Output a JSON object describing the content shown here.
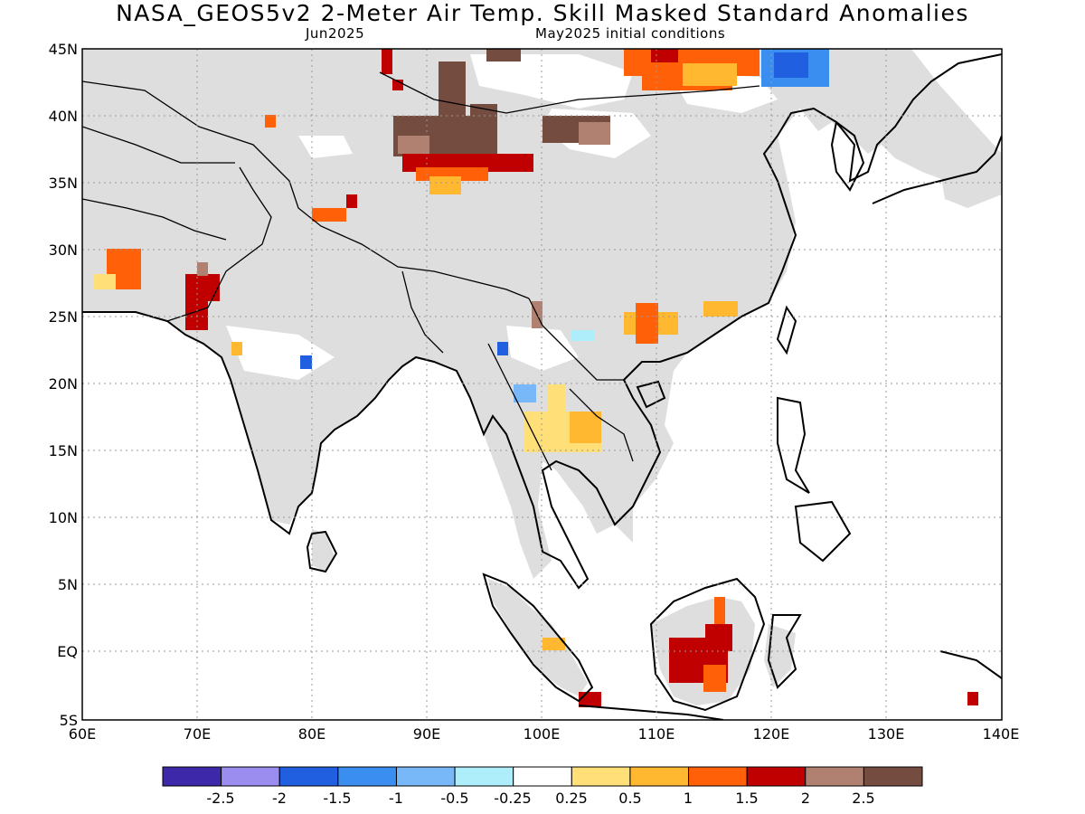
{
  "title": "NASA_GEOS5v2 2-Meter Air Temp. Skill Masked Standard Anomalies",
  "subtitle_left": "Jun2025",
  "subtitle_right": "May2025 initial conditions",
  "lat_ticks": [
    "45N",
    "40N",
    "35N",
    "30N",
    "25N",
    "20N",
    "15N",
    "10N",
    "5N",
    "EQ",
    "5S"
  ],
  "lon_ticks": [
    "60E",
    "70E",
    "80E",
    "90E",
    "100E",
    "110E",
    "120E",
    "130E",
    "140E"
  ],
  "colorbar": {
    "colors": [
      "#3c28a8",
      "#9b8cf0",
      "#1f5fe0",
      "#3a8ef0",
      "#78b8f8",
      "#aeeefa",
      "#ffffff",
      "#ffe078",
      "#ffb830",
      "#ff6008",
      "#c00000",
      "#b08070",
      "#744c40"
    ],
    "labels": [
      "-2.5",
      "-2",
      "-1.5",
      "-1",
      "-0.5",
      "-0.25",
      "0.25",
      "0.5",
      "1",
      "1.5",
      "2",
      "2.5"
    ]
  },
  "colors": {
    "masked": "#dedede",
    "ocean": "#ffffff",
    "coast": "#000000",
    "grid": "#999999"
  }
}
